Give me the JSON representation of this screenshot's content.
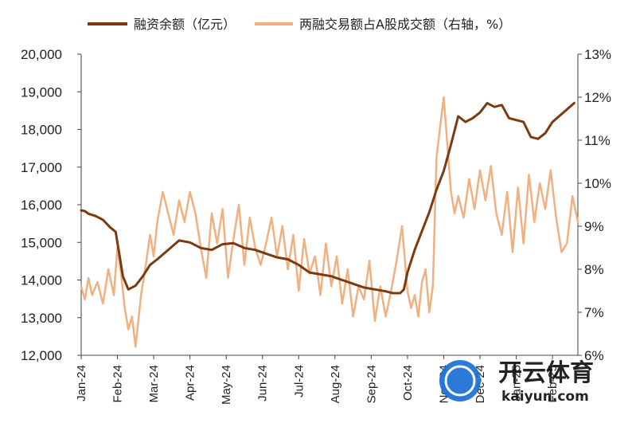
{
  "chart_data": {
    "type": "line",
    "x_categories": [
      "Jan-24",
      "Feb-24",
      "Mar-24",
      "Apr-24",
      "May-24",
      "Jun-24",
      "Jul-24",
      "Aug-24",
      "Sep-24",
      "Oct-24",
      "Nov-24",
      "Dec-24",
      "Jan-25",
      "Feb-25"
    ],
    "x_ticks": [
      "Jan-24",
      "Feb-24",
      "Mar-24",
      "Apr-24",
      "May-24",
      "Jun-24",
      "Jul-24",
      "Aug-24",
      "Sep-24",
      "Oct-24",
      "Nov-24",
      "Dec-24",
      "Jan-25",
      "Feb-25"
    ],
    "left_axis": {
      "ylim": [
        12000,
        20000
      ],
      "ticks": [
        12000,
        13000,
        14000,
        15000,
        16000,
        17000,
        18000,
        19000,
        20000
      ],
      "tick_labels": [
        "12,000",
        "13,000",
        "14,000",
        "15,000",
        "16,000",
        "17,000",
        "18,000",
        "19,000",
        "20,000"
      ]
    },
    "right_axis": {
      "ylim": [
        6,
        13
      ],
      "ticks": [
        6,
        7,
        8,
        9,
        10,
        11,
        12,
        13
      ],
      "tick_labels": [
        "6%",
        "7%",
        "8%",
        "9%",
        "10%",
        "11%",
        "12%",
        "13%"
      ]
    },
    "legend_position": "top",
    "series": [
      {
        "name": "融资余额（亿元）",
        "axis": "left",
        "color": "#7b3a10",
        "x": [
          0,
          0.1,
          0.2,
          0.4,
          0.6,
          0.8,
          0.95,
          1.05,
          1.15,
          1.3,
          1.5,
          1.7,
          1.9,
          2.1,
          2.4,
          2.7,
          3.0,
          3.3,
          3.6,
          3.9,
          4.2,
          4.5,
          4.8,
          5.1,
          5.4,
          5.7,
          6.0,
          6.3,
          6.6,
          6.9,
          7.2,
          7.5,
          7.8,
          8.1,
          8.4,
          8.6,
          8.8,
          8.9,
          9.0,
          9.2,
          9.4,
          9.6,
          9.8,
          10.0,
          10.2,
          10.4,
          10.6,
          10.8,
          11.0,
          11.2,
          11.4,
          11.6,
          11.8,
          12.0,
          12.2,
          12.4,
          12.6,
          12.8,
          13.0,
          13.3,
          13.6
        ],
        "values": [
          15850,
          15830,
          15760,
          15700,
          15600,
          15400,
          15280,
          14700,
          14100,
          13750,
          13850,
          14100,
          14400,
          14550,
          14800,
          15050,
          15000,
          14850,
          14800,
          14950,
          14980,
          14850,
          14800,
          14700,
          14600,
          14550,
          14400,
          14200,
          14150,
          14100,
          14000,
          13900,
          13800,
          13750,
          13700,
          13650,
          13650,
          13750,
          14200,
          14800,
          15300,
          15800,
          16400,
          16900,
          17600,
          18350,
          18200,
          18300,
          18450,
          18700,
          18600,
          18650,
          18300,
          18250,
          18200,
          17800,
          17750,
          17900,
          18200,
          18450,
          18700
        ]
      },
      {
        "name": "两融交易额占A股成交额（右轴，%）",
        "axis": "right",
        "color": "#f0b080",
        "x": [
          0,
          0.1,
          0.2,
          0.3,
          0.45,
          0.6,
          0.75,
          0.9,
          1.0,
          1.1,
          1.2,
          1.3,
          1.4,
          1.5,
          1.65,
          1.8,
          1.9,
          2.0,
          2.1,
          2.25,
          2.4,
          2.55,
          2.7,
          2.85,
          3.0,
          3.15,
          3.3,
          3.45,
          3.6,
          3.75,
          3.9,
          4.05,
          4.2,
          4.35,
          4.5,
          4.65,
          4.8,
          4.95,
          5.1,
          5.25,
          5.4,
          5.55,
          5.7,
          5.85,
          6.0,
          6.15,
          6.3,
          6.45,
          6.6,
          6.75,
          6.9,
          7.05,
          7.2,
          7.35,
          7.5,
          7.65,
          7.8,
          7.95,
          8.1,
          8.25,
          8.4,
          8.55,
          8.7,
          8.85,
          9.0,
          9.1,
          9.2,
          9.3,
          9.4,
          9.5,
          9.6,
          9.7,
          9.8,
          9.9,
          10.0,
          10.1,
          10.2,
          10.3,
          10.4,
          10.55,
          10.7,
          10.85,
          11.0,
          11.15,
          11.3,
          11.45,
          11.6,
          11.75,
          11.9,
          12.05,
          12.2,
          12.35,
          12.5,
          12.65,
          12.8,
          12.95,
          13.1,
          13.25,
          13.4,
          13.55,
          13.7
        ],
        "values": [
          7.6,
          7.3,
          7.8,
          7.4,
          7.7,
          7.2,
          8.0,
          7.4,
          8.5,
          7.9,
          7.1,
          6.6,
          6.9,
          6.2,
          7.4,
          8.2,
          8.8,
          8.3,
          9.1,
          9.8,
          9.3,
          8.8,
          9.6,
          9.1,
          9.8,
          9.3,
          8.5,
          7.8,
          9.3,
          8.6,
          9.4,
          7.8,
          8.7,
          9.5,
          8.1,
          9.2,
          8.5,
          8.1,
          8.6,
          9.2,
          8.3,
          9.0,
          8.0,
          8.8,
          7.5,
          8.7,
          7.9,
          8.3,
          7.4,
          8.6,
          7.6,
          8.3,
          7.2,
          8.0,
          6.9,
          7.6,
          7.3,
          8.2,
          6.8,
          7.6,
          6.9,
          7.5,
          8.2,
          9.0,
          7.5,
          7.1,
          7.4,
          6.9,
          7.7,
          8.0,
          7.0,
          7.6,
          10.6,
          11.3,
          12.0,
          10.9,
          9.8,
          9.3,
          9.7,
          9.2,
          10.1,
          9.4,
          10.3,
          9.6,
          10.4,
          9.3,
          8.8,
          9.8,
          8.4,
          9.9,
          8.6,
          10.2,
          9.1,
          10.0,
          9.4,
          10.3,
          9.2,
          8.4,
          8.6,
          9.7,
          9.1
        ]
      }
    ]
  },
  "legend": {
    "item1": "融资余额（亿元）",
    "item2": "两融交易额占A股成交额（右轴，%）"
  },
  "watermark": {
    "brand_cn": "开云体育",
    "brand_en": "kaiyun.com"
  }
}
